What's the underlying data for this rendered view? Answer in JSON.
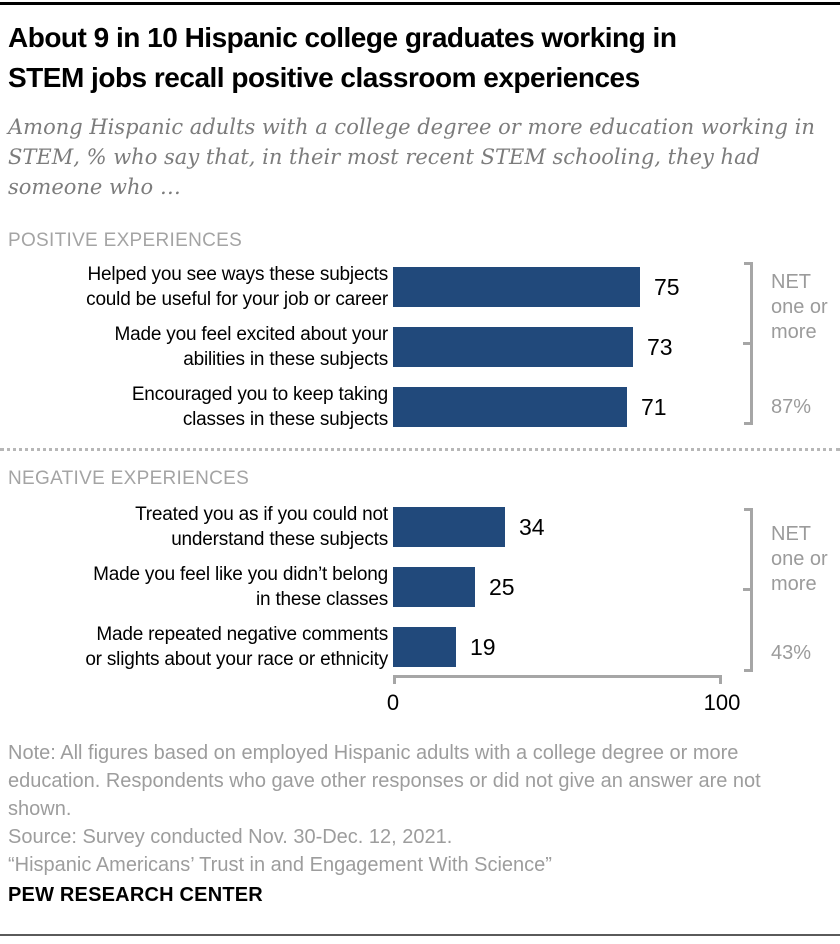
{
  "header": {
    "title": "About 9 in 10 Hispanic college graduates working in\nSTEM jobs recall positive classroom experiences",
    "subtitle": "Among Hispanic adults with a college degree or more education working in\nSTEM, % who say that, in their most recent STEM schooling, they had\nsomeone who …"
  },
  "chart_data": {
    "type": "bar",
    "orientation": "horizontal",
    "unit": "%",
    "xlim": [
      0,
      100
    ],
    "x_tick_labels": [
      "0",
      "100"
    ],
    "bar_color": "#21497b",
    "grid": false,
    "sections": [
      {
        "heading": "POSITIVE EXPERIENCES",
        "rows": [
          {
            "label": "Helped you see ways these subjects\ncould be useful for your job or career",
            "value": 75
          },
          {
            "label": "Made you feel excited about your\nabilities in these subjects",
            "value": 73
          },
          {
            "label": "Encouraged you to keep taking\nclasses in these subjects",
            "value": 71
          }
        ],
        "net": {
          "label": "NET one or more",
          "value": "87%"
        }
      },
      {
        "heading": "NEGATIVE EXPERIENCES",
        "rows": [
          {
            "label": "Treated you as if you could not\nunderstand these subjects",
            "value": 34
          },
          {
            "label": "Made you feel like you didn’t belong\nin these classes",
            "value": 25
          },
          {
            "label": "Made repeated negative comments\nor slights about your race or ethnicity",
            "value": 19
          }
        ],
        "net": {
          "label": "NET one or more",
          "value": "43%"
        }
      }
    ]
  },
  "footer": {
    "note": "Note: All figures based on employed Hispanic adults with a college degree or more\neducation. Respondents who gave other responses or did not give an answer are not\nshown.",
    "source": "Source: Survey conducted Nov. 30-Dec. 12, 2021.",
    "report": "“Hispanic Americans’ Trust in and Engagement With Science”",
    "brand": "PEW RESEARCH CENTER"
  }
}
